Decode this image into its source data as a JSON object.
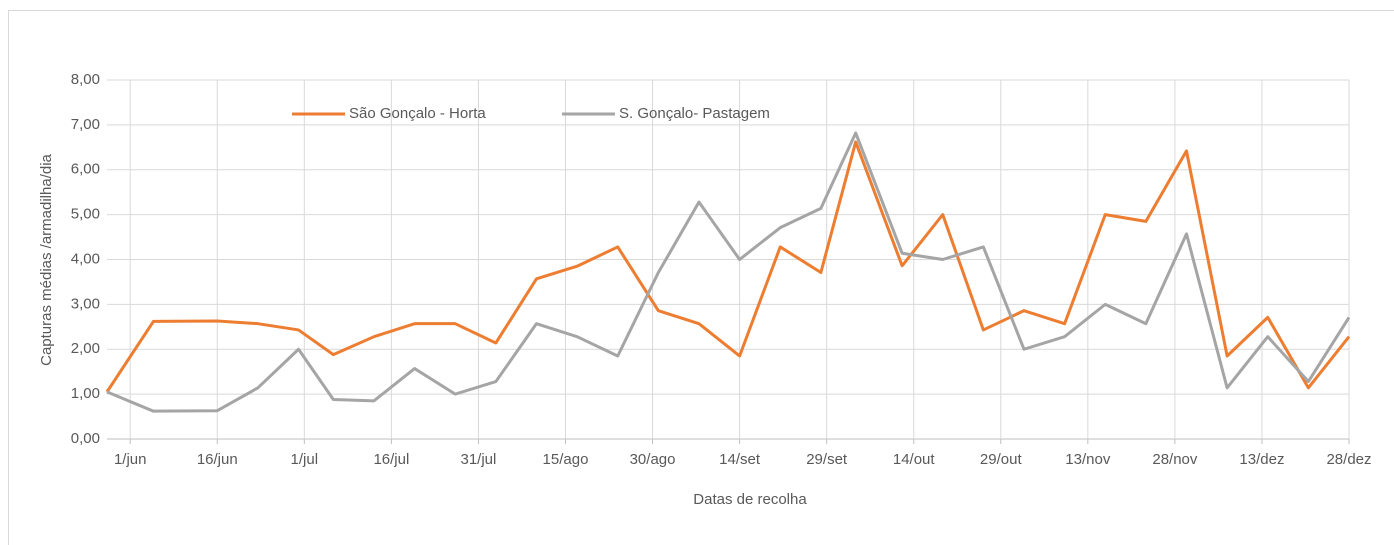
{
  "chart_data": {
    "type": "line",
    "xlabel": "Datas de recolha",
    "ylabel": "Capturas médias /armadilha/dia",
    "x": [
      -4,
      4,
      15,
      22,
      29,
      35,
      42,
      49,
      56,
      63,
      70,
      77,
      84,
      91,
      98,
      105,
      112,
      119,
      125,
      133,
      140,
      147,
      154,
      161,
      168,
      175,
      182,
      189,
      196,
      203,
      210
    ],
    "series": [
      {
        "name": "São Gonçalo - Horta",
        "color": "#ed7d31",
        "values": [
          1.05,
          2.62,
          2.63,
          2.57,
          2.43,
          1.88,
          2.28,
          2.57,
          2.57,
          2.14,
          3.57,
          3.85,
          4.28,
          2.86,
          2.57,
          1.85,
          4.28,
          3.71,
          6.62,
          3.86,
          5.0,
          2.43,
          2.86,
          2.57,
          5.0,
          4.85,
          6.42,
          1.85,
          2.71,
          1.14,
          2.28
        ]
      },
      {
        "name": "S. Gonçalo- Pastagem",
        "color": "#a5a5a5",
        "values": [
          1.05,
          0.62,
          0.63,
          1.14,
          2.0,
          0.88,
          0.85,
          1.57,
          1.0,
          1.28,
          2.57,
          2.28,
          1.85,
          3.71,
          5.28,
          4.0,
          4.71,
          5.14,
          6.82,
          4.14,
          4.0,
          4.28,
          2.0,
          2.28,
          3.0,
          2.57,
          4.57,
          1.14,
          2.28,
          1.28,
          2.71
        ]
      }
    ],
    "xlim": [
      -4,
      210
    ],
    "xticks": [
      {
        "value": 0,
        "label": "1/jun"
      },
      {
        "value": 15,
        "label": "16/jun"
      },
      {
        "value": 30,
        "label": "1/jul"
      },
      {
        "value": 45,
        "label": "16/jul"
      },
      {
        "value": 60,
        "label": "31/jul"
      },
      {
        "value": 75,
        "label": "15/ago"
      },
      {
        "value": 90,
        "label": "30/ago"
      },
      {
        "value": 105,
        "label": "14/set"
      },
      {
        "value": 120,
        "label": "29/set"
      },
      {
        "value": 135,
        "label": "14/out"
      },
      {
        "value": 150,
        "label": "29/out"
      },
      {
        "value": 165,
        "label": "13/nov"
      },
      {
        "value": 180,
        "label": "28/nov"
      },
      {
        "value": 195,
        "label": "13/dez"
      },
      {
        "value": 210,
        "label": "28/dez"
      }
    ],
    "ylim": [
      0,
      8
    ],
    "yticks": [
      {
        "value": 0,
        "label": "0,00"
      },
      {
        "value": 1,
        "label": "1,00"
      },
      {
        "value": 2,
        "label": "2,00"
      },
      {
        "value": 3,
        "label": "3,00"
      },
      {
        "value": 4,
        "label": "4,00"
      },
      {
        "value": 5,
        "label": "5,00"
      },
      {
        "value": 6,
        "label": "6,00"
      },
      {
        "value": 7,
        "label": "7,00"
      },
      {
        "value": 8,
        "label": "8,00"
      }
    ],
    "grid": true
  }
}
